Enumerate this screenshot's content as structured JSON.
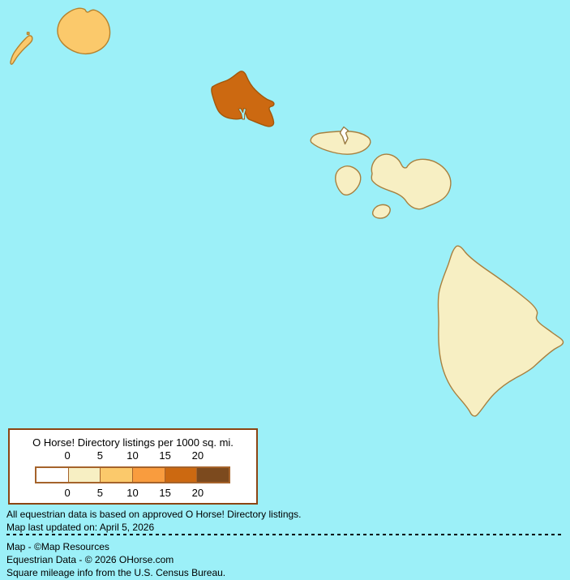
{
  "map": {
    "region": "Hawaiian Islands",
    "colors": {
      "ocean": "#9CF0F8",
      "class_0": "#FFFFFF",
      "class_0_5": "#F7EFC3",
      "class_5_10": "#FBC96B",
      "class_10_15": "#F99C3E",
      "class_15_20": "#CC6911",
      "class_20_plus": "#7C4A1E"
    },
    "islands": [
      {
        "name": "Lehua",
        "listings_class": "5-10"
      },
      {
        "name": "Niihau",
        "listings_class": "5-10"
      },
      {
        "name": "Kauai",
        "listings_class": "5-10"
      },
      {
        "name": "Oahu",
        "listings_class": "15-20"
      },
      {
        "name": "Molokai",
        "listings_class": "0-5"
      },
      {
        "name": "Kalawao",
        "listings_class": "0"
      },
      {
        "name": "Lanai",
        "listings_class": "0-5"
      },
      {
        "name": "Maui",
        "listings_class": "0-5"
      },
      {
        "name": "Kahoolawe",
        "listings_class": "0-5"
      },
      {
        "name": "Hawaii (Big Island)",
        "listings_class": "0-5"
      }
    ]
  },
  "legend": {
    "title": "O Horse! Directory listings per 1000 sq. mi.",
    "ticks_top": [
      "0",
      "5",
      "10",
      "15",
      "20"
    ],
    "ticks_bottom": [
      "0",
      "5",
      "10",
      "15",
      "20"
    ],
    "swatches": [
      "#FFFFFF",
      "#F7EFC3",
      "#FBC96B",
      "#F99C3E",
      "#CC6911",
      "#7C4A1E"
    ]
  },
  "notes": {
    "above": [
      "All equestrian data is based on approved O Horse! Directory listings.",
      "Map last updated on: April 5, 2026"
    ],
    "below": [
      "Map - ©Map Resources",
      "Equestrian Data - © 2026 OHorse.com",
      "Square mileage info from the U.S. Census Bureau."
    ]
  }
}
